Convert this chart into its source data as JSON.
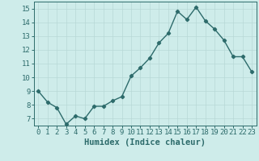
{
  "x": [
    0,
    1,
    2,
    3,
    4,
    5,
    6,
    7,
    8,
    9,
    10,
    11,
    12,
    13,
    14,
    15,
    16,
    17,
    18,
    19,
    20,
    21,
    22,
    23
  ],
  "y": [
    9.0,
    8.2,
    7.8,
    6.6,
    7.2,
    7.0,
    7.9,
    7.9,
    8.3,
    8.6,
    10.1,
    10.7,
    11.4,
    12.5,
    13.2,
    14.8,
    14.2,
    15.1,
    14.1,
    13.5,
    12.7,
    11.5,
    11.5,
    10.4
  ],
  "xlabel": "Humidex (Indice chaleur)",
  "xlim": [
    -0.5,
    23.5
  ],
  "ylim": [
    6.5,
    15.5
  ],
  "yticks": [
    7,
    8,
    9,
    10,
    11,
    12,
    13,
    14,
    15
  ],
  "xticks": [
    0,
    1,
    2,
    3,
    4,
    5,
    6,
    7,
    8,
    9,
    10,
    11,
    12,
    13,
    14,
    15,
    16,
    17,
    18,
    19,
    20,
    21,
    22,
    23
  ],
  "bg_color": "#ceecea",
  "grid_color": "#b8d8d6",
  "line_color": "#2d6b6b",
  "marker": "D",
  "marker_size": 2.2,
  "line_width": 1.0,
  "xlabel_fontsize": 7.5,
  "tick_fontsize": 6.5
}
